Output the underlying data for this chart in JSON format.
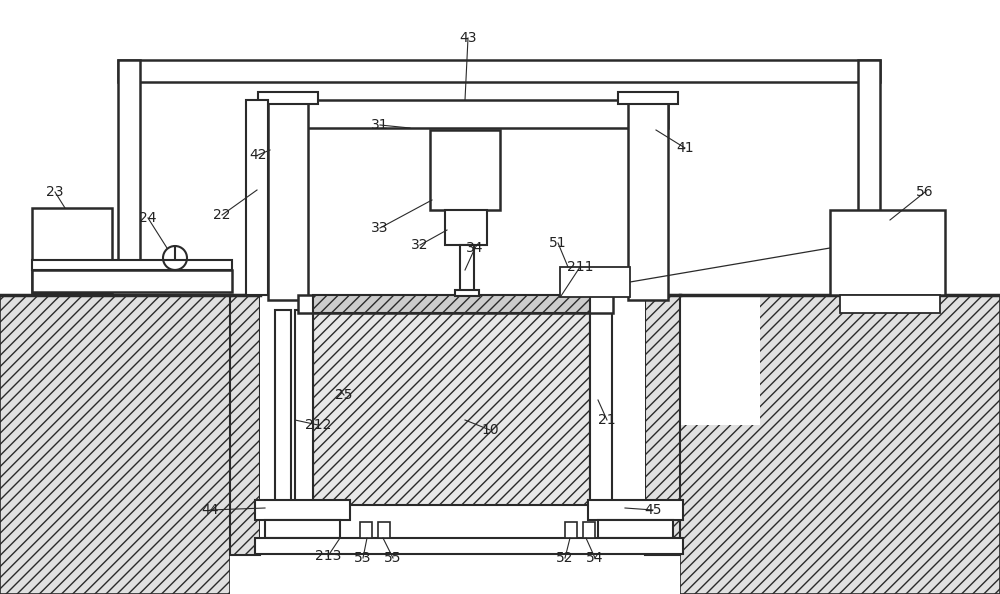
{
  "figsize": [
    10.0,
    5.94
  ],
  "dpi": 100,
  "lc": "#2a2a2a",
  "bg": "white",
  "hatch_bg": "#e0e0e0",
  "label_fs": 10,
  "label_color": "#222222"
}
